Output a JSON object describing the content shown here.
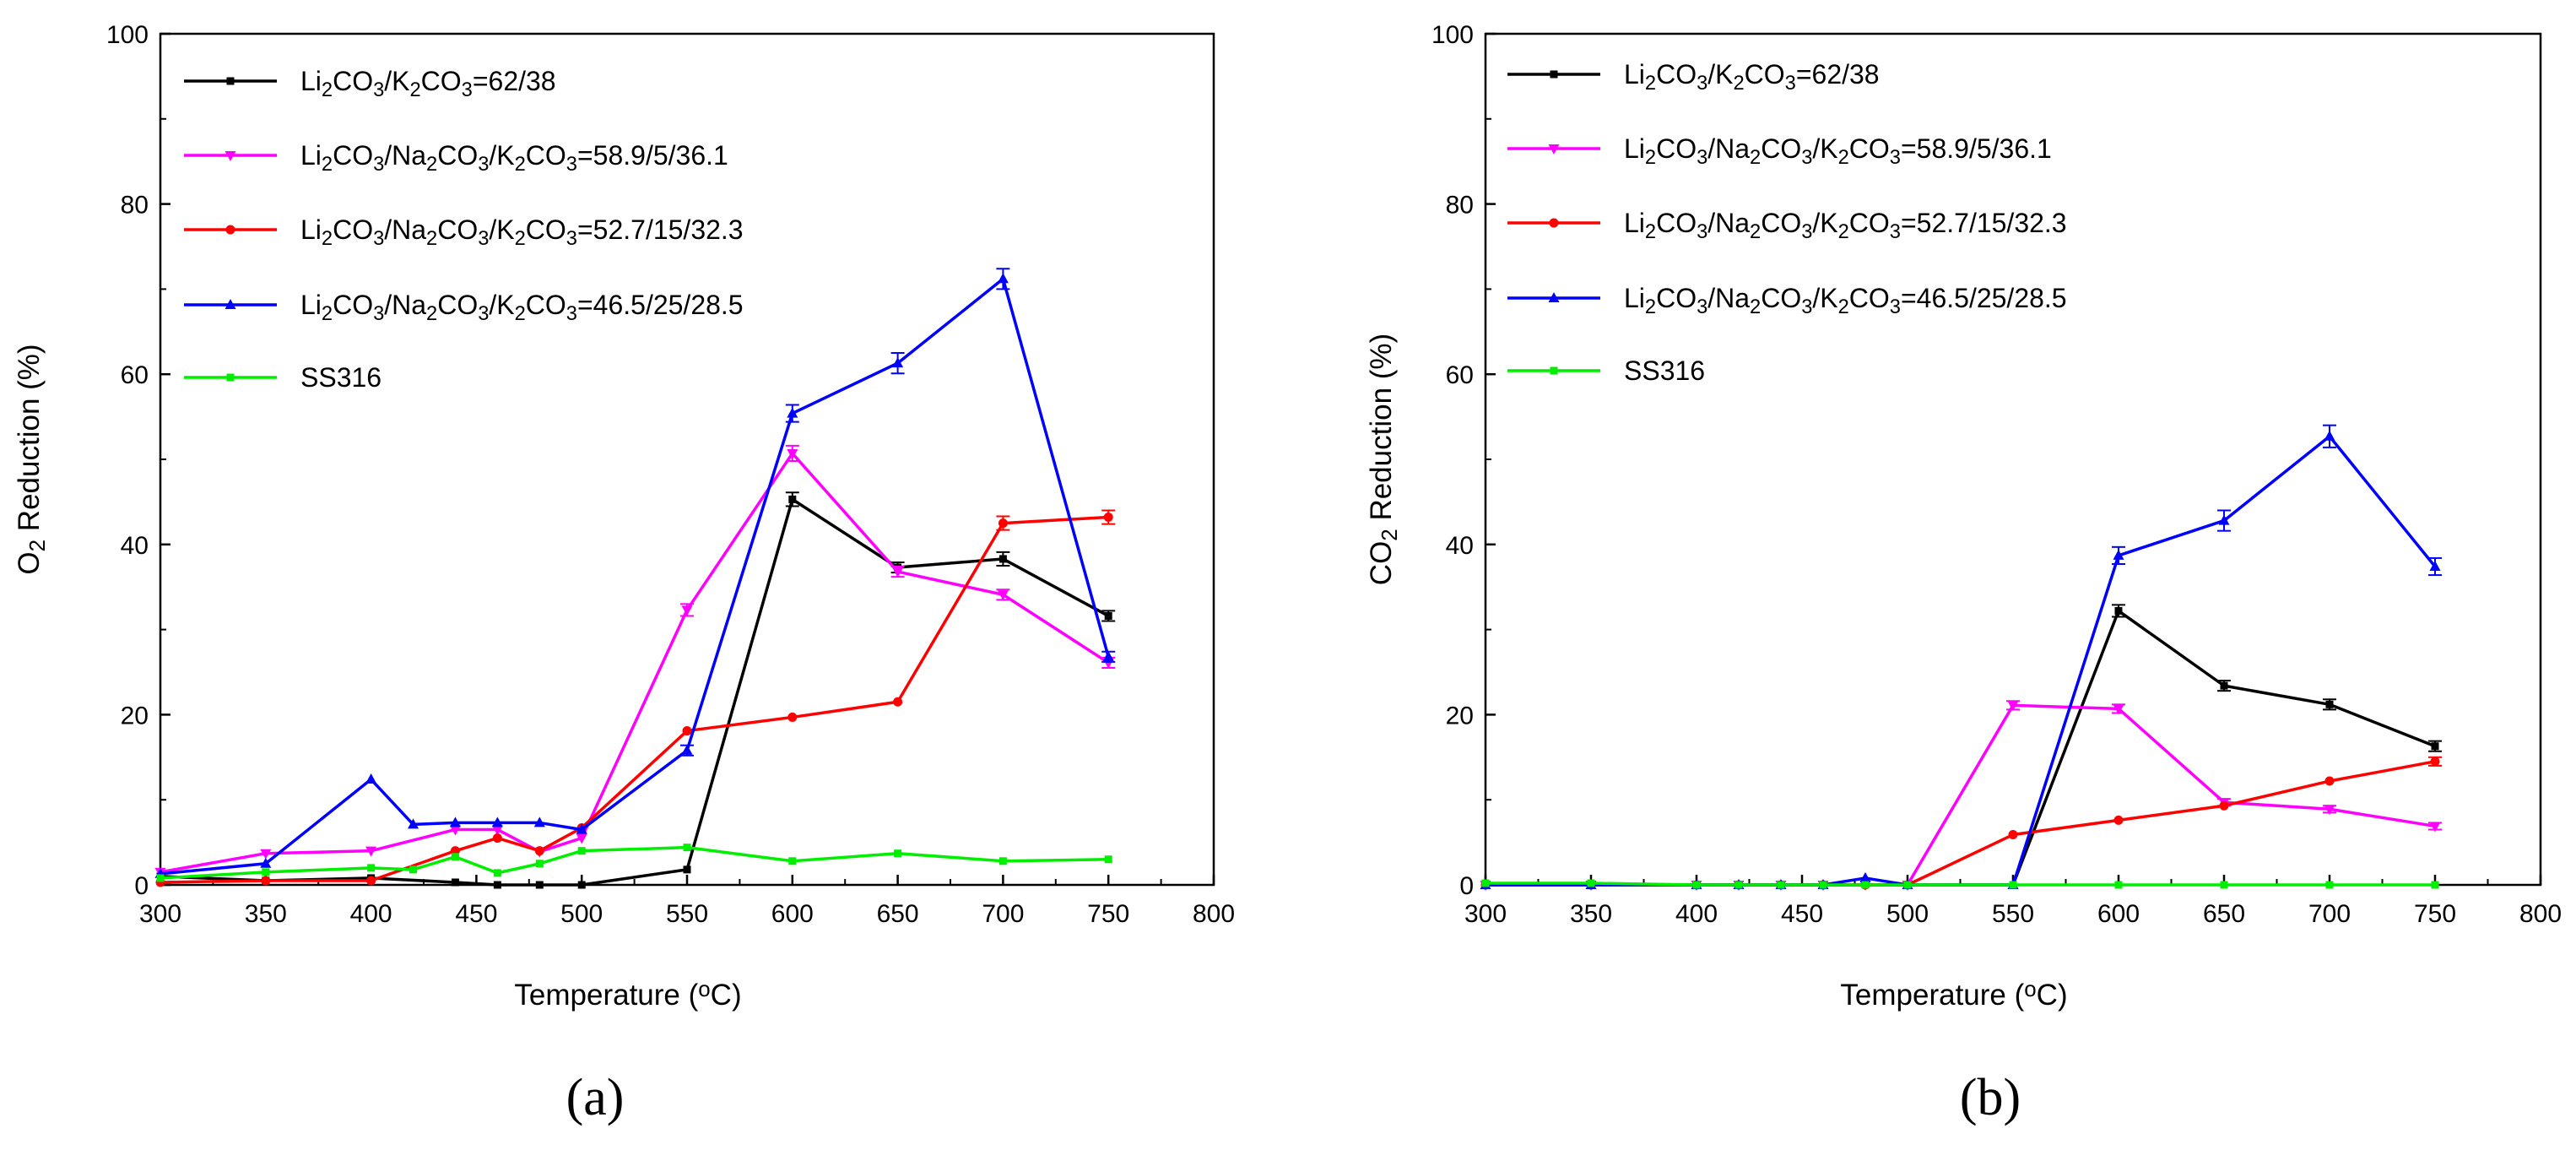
{
  "chart_data": [
    {
      "type": "line",
      "panel_label": "(a)",
      "xlabel": "Temperature (",
      "xlabel_sup": "o",
      "xlabel_unit": "C)",
      "ylabel_prefix": "O",
      "ylabel_sub": "2",
      "ylabel_rest": " Reduction (%)",
      "xlim": [
        300,
        800
      ],
      "ylim": [
        0,
        100
      ],
      "xticks": [
        300,
        350,
        400,
        450,
        500,
        550,
        600,
        650,
        700,
        750,
        800
      ],
      "yticks": [
        0,
        20,
        40,
        60,
        80,
        100
      ],
      "series": [
        {
          "key": "s1",
          "marker": "square",
          "color": "#000000",
          "x": [
            300,
            350,
            400,
            440,
            460,
            480,
            500,
            550,
            600,
            650,
            700,
            750
          ],
          "y": [
            1.0,
            0.5,
            0.8,
            0.3,
            0.0,
            0.0,
            0.0,
            1.8,
            45.3,
            37.3,
            38.3,
            31.6
          ],
          "err": [
            0,
            0,
            0,
            0,
            0,
            0,
            0,
            0,
            0.8,
            0.6,
            0.8,
            0.6
          ]
        },
        {
          "key": "s2",
          "marker": "triangle-down",
          "color": "#ff00ff",
          "x": [
            300,
            350,
            400,
            440,
            460,
            480,
            500,
            550,
            600,
            650,
            700,
            750
          ],
          "y": [
            1.5,
            3.7,
            4.0,
            6.5,
            6.5,
            3.9,
            5.5,
            32.3,
            50.7,
            36.8,
            34.1,
            26.1
          ],
          "err": [
            0,
            0,
            0,
            0,
            0,
            0,
            0,
            0.7,
            0.9,
            0.6,
            0.6,
            0.6
          ]
        },
        {
          "key": "s3",
          "marker": "circle",
          "color": "#ff0000",
          "x": [
            300,
            350,
            400,
            440,
            460,
            480,
            500,
            550,
            600,
            650,
            700,
            750
          ],
          "y": [
            0.3,
            0.5,
            0.5,
            4.0,
            5.5,
            4.0,
            6.7,
            18.1,
            19.7,
            21.5,
            42.5,
            43.2
          ],
          "err": [
            0,
            0,
            0,
            0,
            0,
            0,
            0,
            0,
            0,
            0,
            0.8,
            0.8
          ]
        },
        {
          "key": "s4",
          "marker": "triangle-up",
          "color": "#0000ff",
          "x": [
            300,
            350,
            400,
            420,
            440,
            460,
            480,
            500,
            550,
            600,
            650,
            700,
            750
          ],
          "y": [
            1.3,
            2.5,
            12.4,
            7.1,
            7.3,
            7.3,
            7.3,
            6.5,
            15.8,
            55.4,
            61.3,
            71.2,
            26.8
          ],
          "err": [
            0,
            0,
            0,
            0,
            0,
            0,
            0,
            0,
            0.6,
            1.0,
            1.2,
            1.2,
            0.6
          ]
        },
        {
          "key": "s5",
          "marker": "square",
          "color": "#00ee00",
          "x": [
            300,
            350,
            400,
            420,
            440,
            460,
            480,
            500,
            550,
            600,
            650,
            700,
            750
          ],
          "y": [
            0.8,
            1.5,
            2.0,
            1.8,
            3.3,
            1.4,
            2.5,
            4.0,
            4.4,
            2.8,
            3.7,
            2.8,
            3.0
          ],
          "err": [
            0,
            0,
            0,
            0,
            0,
            0,
            0,
            0,
            0,
            0,
            0,
            0,
            0
          ]
        }
      ]
    },
    {
      "type": "line",
      "panel_label": "(b)",
      "xlabel": "Temperature (",
      "xlabel_sup": "o",
      "xlabel_unit": "C)",
      "ylabel_prefix": "CO",
      "ylabel_sub": "2",
      "ylabel_rest": " Reduction (%)",
      "xlim": [
        300,
        800
      ],
      "ylim": [
        0,
        100
      ],
      "xticks": [
        300,
        350,
        400,
        450,
        500,
        550,
        600,
        650,
        700,
        750,
        800
      ],
      "yticks": [
        0,
        20,
        40,
        60,
        80,
        100
      ],
      "series": [
        {
          "key": "s1",
          "marker": "square",
          "color": "#000000",
          "x": [
            300,
            350,
            400,
            420,
            440,
            460,
            480,
            500,
            550,
            600,
            650,
            700,
            750
          ],
          "y": [
            0,
            0,
            0,
            0,
            0,
            0,
            0,
            0,
            0,
            32.2,
            23.4,
            21.2,
            16.3
          ],
          "err": [
            0,
            0,
            0,
            0,
            0,
            0,
            0,
            0,
            0,
            0.7,
            0.6,
            0.6,
            0.6
          ]
        },
        {
          "key": "s2",
          "marker": "triangle-down",
          "color": "#ff00ff",
          "x": [
            300,
            350,
            400,
            420,
            440,
            460,
            480,
            500,
            550,
            600,
            650,
            700,
            750
          ],
          "y": [
            0,
            0,
            0,
            0,
            0,
            0,
            0,
            0,
            21.1,
            20.7,
            9.7,
            8.9,
            6.9
          ],
          "err": [
            0,
            0,
            0,
            0,
            0,
            0,
            0,
            0,
            0.5,
            0.5,
            0.4,
            0.4,
            0.4
          ]
        },
        {
          "key": "s3",
          "marker": "circle",
          "color": "#ff0000",
          "x": [
            300,
            350,
            400,
            420,
            440,
            460,
            480,
            500,
            550,
            600,
            650,
            700,
            750
          ],
          "y": [
            0,
            0,
            0,
            0,
            0,
            0,
            0,
            0,
            5.9,
            7.6,
            9.3,
            12.2,
            14.5
          ],
          "err": [
            0,
            0,
            0,
            0,
            0,
            0,
            0,
            0,
            0,
            0,
            0,
            0,
            0.5
          ]
        },
        {
          "key": "s4",
          "marker": "triangle-up",
          "color": "#0000ff",
          "x": [
            300,
            350,
            400,
            420,
            440,
            460,
            480,
            500,
            550,
            600,
            650,
            700,
            750
          ],
          "y": [
            0,
            0,
            0,
            0,
            0,
            0,
            0.8,
            0,
            0,
            38.7,
            42.8,
            52.7,
            37.4
          ],
          "err": [
            0,
            0,
            0,
            0,
            0,
            0,
            0,
            0,
            0,
            1.0,
            1.2,
            1.3,
            1.0
          ]
        },
        {
          "key": "s5",
          "marker": "square",
          "color": "#00ee00",
          "x": [
            300,
            350,
            400,
            420,
            440,
            460,
            480,
            500,
            550,
            600,
            650,
            700,
            750
          ],
          "y": [
            0.2,
            0.2,
            0,
            0,
            0,
            0,
            0,
            0,
            0,
            0,
            0,
            0,
            0
          ],
          "err": [
            0,
            0,
            0,
            0,
            0,
            0,
            0,
            0,
            0,
            0,
            0,
            0,
            0
          ]
        }
      ]
    }
  ],
  "legend": {
    "s1": {
      "parts": [
        [
          "Li",
          ""
        ],
        [
          "2",
          "sub"
        ],
        [
          "CO",
          ""
        ],
        [
          "3",
          "sub"
        ],
        [
          "/K",
          ""
        ],
        [
          "2",
          "sub"
        ],
        [
          "CO",
          ""
        ],
        [
          "3",
          "sub"
        ],
        [
          "=62/38",
          ""
        ]
      ]
    },
    "s2": {
      "parts": [
        [
          "Li",
          ""
        ],
        [
          "2",
          "sub"
        ],
        [
          "CO",
          ""
        ],
        [
          "3",
          "sub"
        ],
        [
          "/Na",
          ""
        ],
        [
          "2",
          "sub"
        ],
        [
          "CO",
          ""
        ],
        [
          "3",
          "sub"
        ],
        [
          "/K",
          ""
        ],
        [
          "2",
          "sub"
        ],
        [
          "CO",
          ""
        ],
        [
          "3",
          "sub"
        ],
        [
          "=58.9/5/36.1",
          ""
        ]
      ]
    },
    "s3": {
      "parts": [
        [
          "Li",
          ""
        ],
        [
          "2",
          "sub"
        ],
        [
          "CO",
          ""
        ],
        [
          "3",
          "sub"
        ],
        [
          "/Na",
          ""
        ],
        [
          "2",
          "sub"
        ],
        [
          "CO",
          ""
        ],
        [
          "3",
          "sub"
        ],
        [
          "/K",
          ""
        ],
        [
          "2",
          "sub"
        ],
        [
          "CO",
          ""
        ],
        [
          "3",
          "sub"
        ],
        [
          "=52.7/15/32.3",
          ""
        ]
      ]
    },
    "s4": {
      "parts": [
        [
          "Li",
          ""
        ],
        [
          "2",
          "sub"
        ],
        [
          "CO",
          ""
        ],
        [
          "3",
          "sub"
        ],
        [
          "/Na",
          ""
        ],
        [
          "2",
          "sub"
        ],
        [
          "CO",
          ""
        ],
        [
          "3",
          "sub"
        ],
        [
          "/K",
          ""
        ],
        [
          "2",
          "sub"
        ],
        [
          "CO",
          ""
        ],
        [
          "3",
          "sub"
        ],
        [
          "=46.5/25/28.5",
          ""
        ]
      ]
    },
    "s5": {
      "parts": [
        [
          "SS316",
          ""
        ]
      ]
    },
    "order": [
      "s1",
      "s2",
      "s3",
      "s4",
      "s5"
    ],
    "placement": "top-left"
  }
}
